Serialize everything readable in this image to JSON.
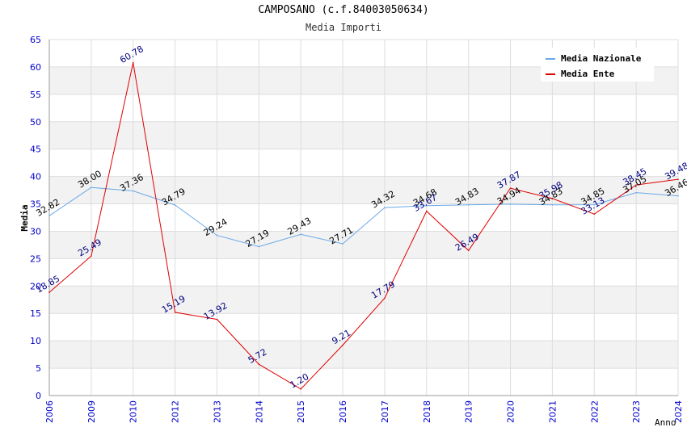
{
  "chart_data": {
    "type": "line",
    "title": "CAMPOSANO (c.f.84003050634)",
    "subtitle": "Media Importi",
    "xlabel": "Anno",
    "ylabel": "Media",
    "ylim": [
      0,
      65
    ],
    "y_ticks": [
      "0",
      "5",
      "10",
      "15",
      "20",
      "25",
      "30",
      "35",
      "40",
      "45",
      "50",
      "55",
      "60",
      "65"
    ],
    "categories": [
      "2006",
      "2009",
      "2010",
      "2012",
      "2013",
      "2014",
      "2015",
      "2016",
      "2017",
      "2018",
      "2019",
      "2020",
      "2021",
      "2022",
      "2023",
      "2024"
    ],
    "series": [
      {
        "name": "Media Nazionale",
        "color": "#6aa8e8",
        "label_color": "#000000",
        "values": [
          32.82,
          38.0,
          37.36,
          34.79,
          29.24,
          27.19,
          29.43,
          27.71,
          34.32,
          34.68,
          34.83,
          34.94,
          34.83,
          34.85,
          37.05,
          36.46
        ],
        "labels": [
          "32.82",
          "38.00",
          "37.36",
          "34.79",
          "29.24",
          "27.19",
          "29.43",
          "27.71",
          "34.32",
          "34.68",
          "34.83",
          "34.94",
          "34.83",
          "34.85",
          "37.05",
          "36.46"
        ]
      },
      {
        "name": "Media Ente",
        "color": "#e00000",
        "label_color": "#000080",
        "values": [
          18.85,
          25.49,
          60.78,
          15.19,
          13.92,
          5.72,
          1.2,
          9.21,
          17.79,
          33.67,
          26.49,
          37.87,
          35.98,
          33.13,
          38.45,
          39.48
        ],
        "labels": [
          "18.85",
          "25.49",
          "60.78",
          "15.19",
          "13.92",
          "5.72",
          "1.20",
          "9.21",
          "17.79",
          "33.67",
          "26.49",
          "37.87",
          "35.98",
          "33.13",
          "38.45",
          "39.48"
        ]
      }
    ],
    "legend": "top-right",
    "grid": true,
    "colors": {
      "axis_tick": "#0000cc",
      "band": "#f2f2f2",
      "grid": "#dddddd"
    }
  }
}
